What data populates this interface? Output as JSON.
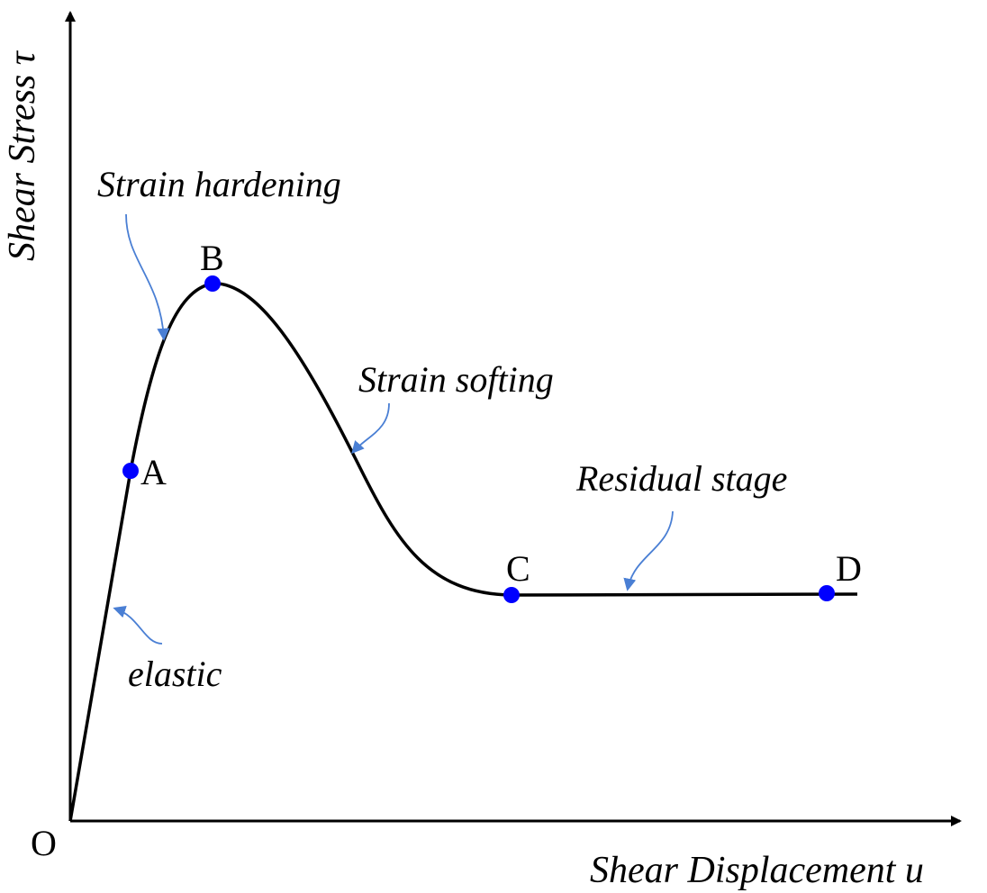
{
  "axes": {
    "x_title": "Shear Displacement u",
    "y_title": "Shear Stress τ",
    "origin": "O"
  },
  "points": [
    {
      "id": "a",
      "label": "A"
    },
    {
      "id": "b",
      "label": "B"
    },
    {
      "id": "c",
      "label": "C"
    },
    {
      "id": "d",
      "label": "D"
    }
  ],
  "stages": {
    "elastic": "elastic",
    "strain_hardening": "Strain hardening",
    "strain_softening": "Strain softing",
    "residual": "Residual stage"
  },
  "colors": {
    "curve": "#000000",
    "points": "#0000ff",
    "arrows": "#4a7fd4",
    "axes": "#000000"
  }
}
